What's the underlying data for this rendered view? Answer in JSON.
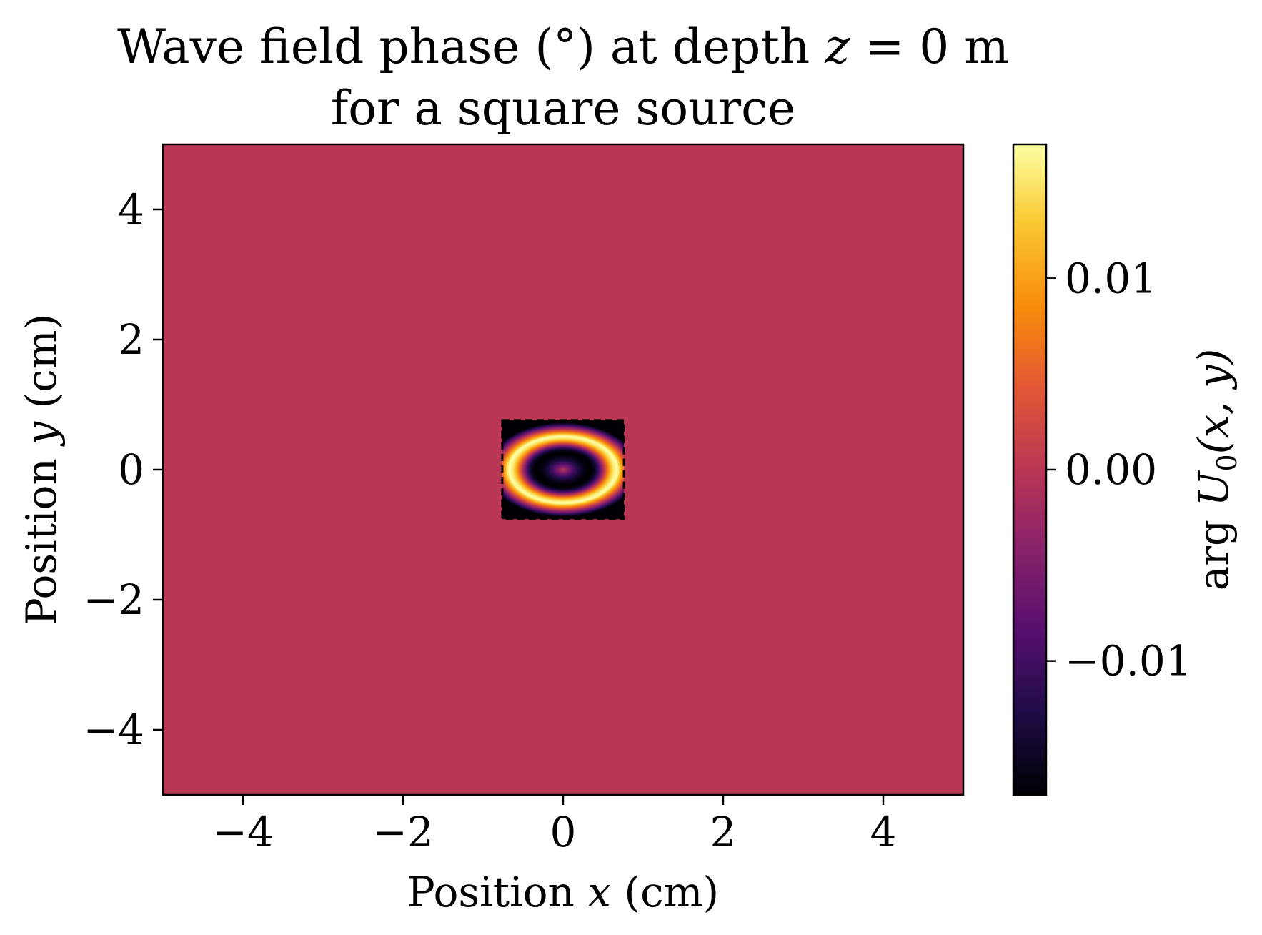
{
  "chart_data": {
    "type": "heatmap",
    "title": {
      "line1_prefix": "Wave field phase (°) at depth ",
      "line1_var": "z",
      "line1_suffix": " = 0 m",
      "line2": "for a square source"
    },
    "xlabel": {
      "prefix": "Position ",
      "var": "x",
      "suffix": " (cm)"
    },
    "ylabel": {
      "prefix": "Position ",
      "var": "y",
      "suffix": " (cm)"
    },
    "xlim": [
      -5,
      5
    ],
    "ylim": [
      -5,
      5
    ],
    "xticks": [
      -4,
      -2,
      0,
      2,
      4
    ],
    "yticks": [
      -4,
      -2,
      0,
      2,
      4
    ],
    "grid": false,
    "colormap": "inferno",
    "colorbar": {
      "label": {
        "prefix": "arg ",
        "var": "U",
        "sub": "0",
        "args": "(x, y)"
      },
      "range": [
        -0.017,
        0.017
      ],
      "ticks": [
        -0.01,
        0.0,
        0.01
      ],
      "tick_labels": [
        "−0.01",
        "0.00",
        "0.01"
      ]
    },
    "background_value": 0.0,
    "source": {
      "shape": "square",
      "x_range": [
        -0.76,
        0.76
      ],
      "y_range": [
        -0.76,
        0.76
      ],
      "outline": "dashed",
      "peak_phase": 0.017,
      "min_phase": -0.017,
      "ring_radius_x_cm": 0.68,
      "ring_radius_y_cm": 0.52,
      "center_value": 0.0
    },
    "colors": {
      "background_field": "#BA3752",
      "frame": "#000000"
    }
  }
}
